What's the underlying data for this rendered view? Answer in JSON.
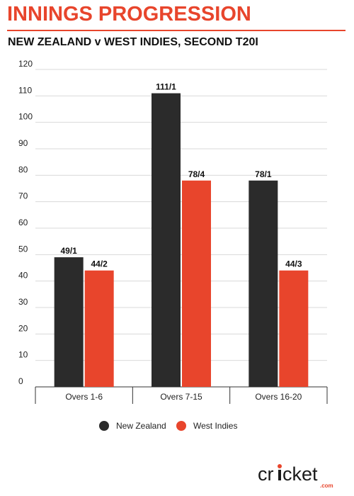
{
  "header": {
    "title": "INNINGS PROGRESSION",
    "subtitle": "NEW ZEALAND v WEST INDIES, SECOND T20I"
  },
  "colors": {
    "accent": "#e8452c",
    "new_zealand": "#2b2b2b",
    "west_indies": "#e8452c"
  },
  "chart_data": {
    "type": "bar",
    "title": "INNINGS PROGRESSION",
    "subtitle": "NEW ZEALAND v WEST INDIES, SECOND T20I",
    "categories": [
      "Overs 1-6",
      "Overs 7-15",
      "Overs 16-20"
    ],
    "series": [
      {
        "name": "New Zealand",
        "values": [
          49,
          111,
          78
        ],
        "labels": [
          "49/1",
          "111/1",
          "78/1"
        ],
        "color": "#2b2b2b"
      },
      {
        "name": "West Indies",
        "values": [
          44,
          78,
          44
        ],
        "labels": [
          "44/2",
          "78/4",
          "44/3"
        ],
        "color": "#e8452c"
      }
    ],
    "yticks": [
      0,
      10,
      20,
      30,
      40,
      50,
      60,
      70,
      80,
      90,
      100,
      110,
      120
    ],
    "ylim": [
      0,
      120
    ],
    "xlabel": "",
    "ylabel": "",
    "grid": true,
    "legend": "bottom-center"
  },
  "logo": {
    "text_pre": "cr",
    "text_post": "cket",
    "dot_text": ".com"
  }
}
